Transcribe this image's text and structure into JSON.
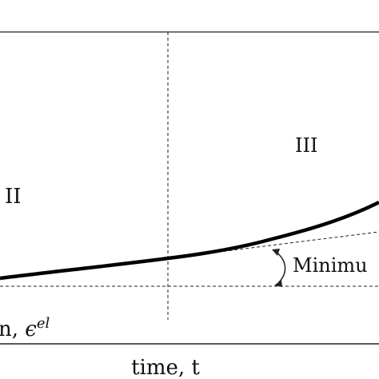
{
  "labels": {
    "region_2": "II",
    "region_3": "III",
    "minimum": "Minimu",
    "strain_prefix": "n, ",
    "strain_symbol": "ϵ",
    "strain_sup": "el",
    "x_axis": "time, t"
  }
}
